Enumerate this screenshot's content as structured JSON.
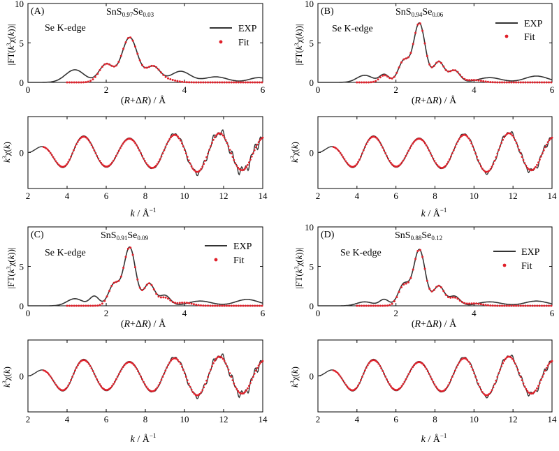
{
  "panels": [
    {
      "label": "(A)",
      "formula": {
        "base": "SnS",
        "s_sub": "0.97",
        "se": "Se",
        "se_sub": "0.03"
      },
      "edge": "Se K-edge",
      "legend": {
        "exp": "EXP",
        "fit": "Fit"
      },
      "ft_chart": {
        "type": "line",
        "xlabel": {
          "pre": "(",
          "r": "R",
          "plus": "+Δ",
          "r2": "R",
          "post": ") / Å"
        },
        "ylabel": "|FT(k³χ(k))|",
        "xlim": [
          0,
          6
        ],
        "ylim": [
          0,
          10
        ],
        "xticks": [
          "0",
          "2",
          "4",
          "6"
        ],
        "yticks": [
          "0",
          "5",
          "10"
        ],
        "peaks": {
          "exp": [
            [
              1.2,
              1.6,
              0.24
            ],
            [
              2.0,
              2.3,
              0.18
            ],
            [
              2.6,
              5.7,
              0.2
            ],
            [
              3.2,
              2.0,
              0.18
            ],
            [
              3.9,
              1.4,
              0.25
            ],
            [
              4.8,
              0.7,
              0.3
            ],
            [
              5.9,
              0.6,
              0.25
            ]
          ],
          "fit": [
            [
              2.0,
              2.3,
              0.18
            ],
            [
              2.6,
              5.7,
              0.2
            ],
            [
              3.2,
              2.0,
              0.18
            ],
            [
              3.6,
              0.3,
              0.2
            ]
          ]
        }
      },
      "k_chart": {
        "type": "line",
        "ylabel": "k³χ(k)",
        "xlabel": {
          "k": "k",
          "post": " / Å",
          "sup": "−1"
        },
        "xlim": [
          2,
          14
        ],
        "xticks": [
          "2",
          "4",
          "6",
          "8",
          "10",
          "12",
          "14"
        ],
        "yticks": [
          "0"
        ],
        "noise": 0.35
      }
    },
    {
      "label": "(B)",
      "formula": {
        "base": "SnS",
        "s_sub": "0.94",
        "se": "Se",
        "se_sub": "0.06"
      },
      "edge": "Se K-edge",
      "legend": {
        "exp": "EXP",
        "fit": "Fit"
      },
      "ft_chart": {
        "type": "line",
        "xlabel": {
          "pre": "(",
          "r": "R",
          "plus": "+Δ",
          "r2": "R",
          "post": ") / Å"
        },
        "ylabel": "|FT(k³χ(k))|",
        "xlim": [
          0,
          6
        ],
        "ylim": [
          0,
          10
        ],
        "xticks": [
          "0",
          "2",
          "4",
          "6"
        ],
        "yticks": [
          "0",
          "5",
          "10"
        ],
        "peaks": {
          "exp": [
            [
              1.2,
              0.9,
              0.2
            ],
            [
              1.7,
              1.0,
              0.12
            ],
            [
              2.2,
              2.7,
              0.14
            ],
            [
              2.6,
              7.5,
              0.15
            ],
            [
              3.1,
              2.6,
              0.14
            ],
            [
              3.5,
              1.5,
              0.14
            ],
            [
              4.4,
              0.6,
              0.3
            ],
            [
              5.6,
              0.8,
              0.3
            ]
          ],
          "fit": [
            [
              1.7,
              0.9,
              0.12
            ],
            [
              2.2,
              2.7,
              0.14
            ],
            [
              2.6,
              7.5,
              0.15
            ],
            [
              3.1,
              2.6,
              0.14
            ],
            [
              3.5,
              1.5,
              0.14
            ],
            [
              4.0,
              0.3,
              0.2
            ]
          ]
        }
      },
      "k_chart": {
        "type": "line",
        "ylabel": "k³χ(k)",
        "xlabel": {
          "k": "k",
          "post": " / Å",
          "sup": "−1"
        },
        "xlim": [
          2,
          14
        ],
        "xticks": [
          "2",
          "4",
          "6",
          "8",
          "10",
          "12",
          "14"
        ],
        "yticks": [
          "0"
        ],
        "noise": 0.2
      }
    },
    {
      "label": "(C)",
      "formula": {
        "base": "SnS",
        "s_sub": "0.91",
        "se": "Se",
        "se_sub": "0.09"
      },
      "edge": "Se K-edge",
      "legend": {
        "exp": "EXP",
        "fit": "Fit"
      },
      "ft_chart": {
        "type": "line",
        "xlabel": {
          "pre": "(",
          "r": "R",
          "plus": "+Δ",
          "r2": "R",
          "post": ") / Å"
        },
        "ylabel": "|FT(k³χ(k))|",
        "xlim": [
          0,
          6
        ],
        "ylim": [
          0,
          10
        ],
        "xticks": [
          "0",
          "2",
          "4",
          "6"
        ],
        "yticks": [
          "0",
          "5"
        ],
        "peaks": {
          "exp": [
            [
              1.2,
              0.9,
              0.2
            ],
            [
              1.7,
              1.2,
              0.12
            ],
            [
              2.2,
              2.7,
              0.14
            ],
            [
              2.6,
              7.4,
              0.15
            ],
            [
              3.1,
              2.8,
              0.14
            ],
            [
              3.5,
              1.3,
              0.14
            ],
            [
              4.4,
              0.6,
              0.3
            ],
            [
              5.6,
              0.8,
              0.3
            ]
          ],
          "fit": [
            [
              2.2,
              2.7,
              0.14
            ],
            [
              2.6,
              7.4,
              0.15
            ],
            [
              3.1,
              2.8,
              0.14
            ],
            [
              3.5,
              1.0,
              0.14
            ],
            [
              4.0,
              0.4,
              0.2
            ]
          ]
        }
      },
      "k_chart": {
        "type": "line",
        "ylabel": "k³χ(k)",
        "xlabel": {
          "k": "k",
          "post": " / Å",
          "sup": "−1"
        },
        "xlim": [
          2,
          14
        ],
        "xticks": [
          "2",
          "4",
          "6",
          "8",
          "10",
          "12",
          "14"
        ],
        "yticks": [
          "0"
        ],
        "noise": 0.3
      }
    },
    {
      "label": "(D)",
      "formula": {
        "base": "SnS",
        "s_sub": "0.88",
        "se": "Se",
        "se_sub": "0.12"
      },
      "edge": "Se K-edge",
      "legend": {
        "exp": "EXP",
        "fit": "Fit"
      },
      "ft_chart": {
        "type": "line",
        "xlabel": {
          "pre": "(",
          "r": "R",
          "plus": "+Δ",
          "r2": "R",
          "post": ") / Å"
        },
        "ylabel": "|FT(k³χ(k))|",
        "xlim": [
          0,
          6
        ],
        "ylim": [
          0,
          10
        ],
        "xticks": [
          "0",
          "2",
          "4",
          "6"
        ],
        "yticks": [
          "0",
          "5",
          "10"
        ],
        "peaks": {
          "exp": [
            [
              1.2,
              0.5,
              0.2
            ],
            [
              1.7,
              0.8,
              0.12
            ],
            [
              2.2,
              2.7,
              0.14
            ],
            [
              2.6,
              7.1,
              0.15
            ],
            [
              3.1,
              2.5,
              0.14
            ],
            [
              3.5,
              1.2,
              0.14
            ],
            [
              4.4,
              0.5,
              0.3
            ],
            [
              5.6,
              0.6,
              0.3
            ]
          ],
          "fit": [
            [
              2.2,
              2.5,
              0.14
            ],
            [
              2.6,
              7.1,
              0.15
            ],
            [
              3.1,
              2.5,
              0.14
            ],
            [
              3.5,
              1.0,
              0.14
            ],
            [
              4.0,
              0.3,
              0.2
            ]
          ]
        }
      },
      "k_chart": {
        "type": "line",
        "ylabel": "k³χ(k)",
        "xlabel": {
          "k": "k",
          "post": " / Å",
          "sup": "−1"
        },
        "xlim": [
          2,
          14
        ],
        "xticks": [
          "2",
          "4",
          "6",
          "8",
          "10",
          "12",
          "14"
        ],
        "yticks": [
          "0"
        ],
        "noise": 0.2
      }
    }
  ],
  "colors": {
    "exp": "#333333",
    "fit": "#e0202a",
    "axis": "#000000"
  }
}
